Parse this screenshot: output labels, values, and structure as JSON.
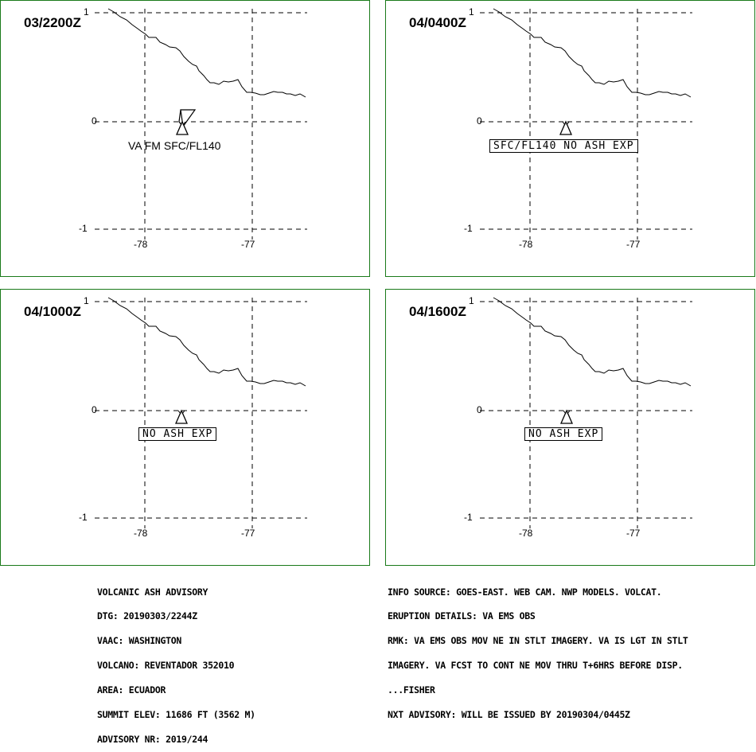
{
  "panels": [
    {
      "time": "03/2200Z",
      "y_ticks": [
        "1",
        "0",
        "-1"
      ],
      "x_ticks": [
        "-78",
        "-77"
      ],
      "label": "VA FM SFC/FL140",
      "label_boxed": false,
      "ash_plume": true
    },
    {
      "time": "04/0400Z",
      "y_ticks": [
        "1",
        "0",
        "-1"
      ],
      "x_ticks": [
        "-78",
        "-77"
      ],
      "label": "SFC/FL140 NO ASH EXP",
      "label_boxed": true,
      "ash_plume": false
    },
    {
      "time": "04/1000Z",
      "y_ticks": [
        "1",
        "0",
        "-1"
      ],
      "x_ticks": [
        "-78",
        "-77"
      ],
      "label": "NO ASH EXP",
      "label_boxed": true,
      "ash_plume": false
    },
    {
      "time": "04/1600Z",
      "y_ticks": [
        "1",
        "0",
        "-1"
      ],
      "x_ticks": [
        "-78",
        "-77"
      ],
      "label": "NO ASH EXP",
      "label_boxed": true,
      "ash_plume": false
    }
  ],
  "map": {
    "grid": "dashed",
    "lat_lines": [
      1,
      0,
      -1
    ],
    "lon_lines": [
      -78,
      -77
    ],
    "coastline": "Colombia-Ecuador border",
    "volcano_icon": "volcano-triangle-icon",
    "colors": {
      "frame": "#1a7a1a",
      "lines": "#000000"
    }
  },
  "advisory_left": [
    "VOLCANIC ASH ADVISORY",
    "DTG: 20190303/2244Z",
    "VAAC: WASHINGTON",
    "VOLCANO: REVENTADOR 352010",
    "AREA: ECUADOR",
    "SUMMIT ELEV: 11686 FT (3562 M)",
    "ADVISORY NR: 2019/244"
  ],
  "advisory_right": [
    "INFO SOURCE: GOES-EAST. WEB CAM. NWP MODELS. VOLCAT.",
    "ERUPTION DETAILS: VA EMS OBS",
    "RMK: VA EMS OBS MOV NE IN STLT IMAGERY. VA IS LGT IN STLT",
    "IMAGERY. VA FCST TO CONT NE MOV THRU T+6HRS BEFORE DISP.",
    "...FISHER",
    "NXT ADVISORY: WILL BE ISSUED BY 20190304/0445Z"
  ]
}
